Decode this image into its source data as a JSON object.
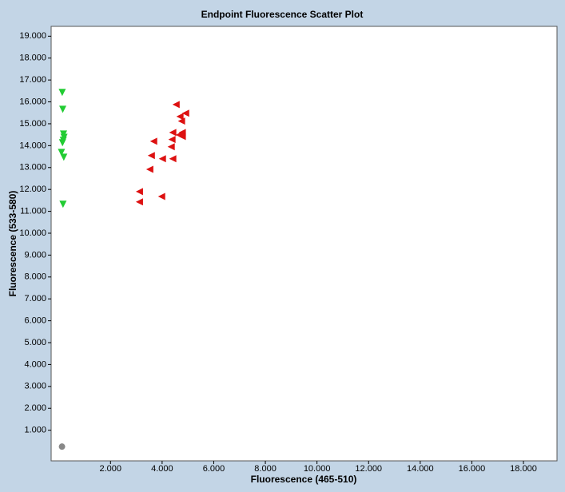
{
  "chart_data": {
    "type": "scatter",
    "title": "Endpoint Fluorescence Scatter Plot",
    "x_label": "Fluorescence (465-510)",
    "y_label": "Fluorescence (533-580)",
    "xlim": [
      -300,
      19300
    ],
    "ylim": [
      -400,
      19450
    ],
    "xticks": [
      {
        "value": 2000,
        "label": "2.000"
      },
      {
        "value": 4000,
        "label": "4.000"
      },
      {
        "value": 6000,
        "label": "6.000"
      },
      {
        "value": 8000,
        "label": "8.000"
      },
      {
        "value": 10000,
        "label": "10.000"
      },
      {
        "value": 12000,
        "label": "12.000"
      },
      {
        "value": 14000,
        "label": "14.000"
      },
      {
        "value": 16000,
        "label": "16.000"
      },
      {
        "value": 18000,
        "label": "18.000"
      }
    ],
    "yticks": [
      {
        "value": 1000,
        "label": "1.000"
      },
      {
        "value": 2000,
        "label": "2.000"
      },
      {
        "value": 3000,
        "label": "3.000"
      },
      {
        "value": 4000,
        "label": "4.000"
      },
      {
        "value": 5000,
        "label": "5.000"
      },
      {
        "value": 6000,
        "label": "6.000"
      },
      {
        "value": 7000,
        "label": "7.000"
      },
      {
        "value": 8000,
        "label": "8.000"
      },
      {
        "value": 9000,
        "label": "9.000"
      },
      {
        "value": 10000,
        "label": "10.000"
      },
      {
        "value": 11000,
        "label": "11.000"
      },
      {
        "value": 12000,
        "label": "12.000"
      },
      {
        "value": 13000,
        "label": "13.000"
      },
      {
        "value": 14000,
        "label": "14.000"
      },
      {
        "value": 15000,
        "label": "15.000"
      },
      {
        "value": 16000,
        "label": "16.000"
      },
      {
        "value": 17000,
        "label": "17.000"
      },
      {
        "value": 18000,
        "label": "18.000"
      },
      {
        "value": 19000,
        "label": "19.000"
      }
    ],
    "series": [
      {
        "color": "#22cc33",
        "marker": "triangle-down",
        "x": [
          130,
          150,
          180,
          200,
          170,
          140,
          100,
          190,
          160
        ],
        "values": [
          16430,
          15660,
          14530,
          14380,
          14240,
          14130,
          13690,
          13470,
          11320
        ]
      },
      {
        "color": "#dd1111",
        "marker": "triangle-left",
        "x": [
          4540,
          4910,
          4690,
          4750,
          4410,
          4780,
          4660,
          4780,
          4380,
          3670,
          4350,
          3580,
          4010,
          4410,
          3520,
          3120,
          3980,
          3120
        ],
        "values": [
          15880,
          15480,
          15330,
          15120,
          14600,
          14600,
          14490,
          14420,
          14280,
          14200,
          13950,
          13550,
          13400,
          13400,
          12920,
          11900,
          11680,
          11430
        ]
      },
      {
        "color": "#888888",
        "marker": "circle",
        "x": [
          120
        ],
        "values": [
          250
        ]
      }
    ]
  }
}
